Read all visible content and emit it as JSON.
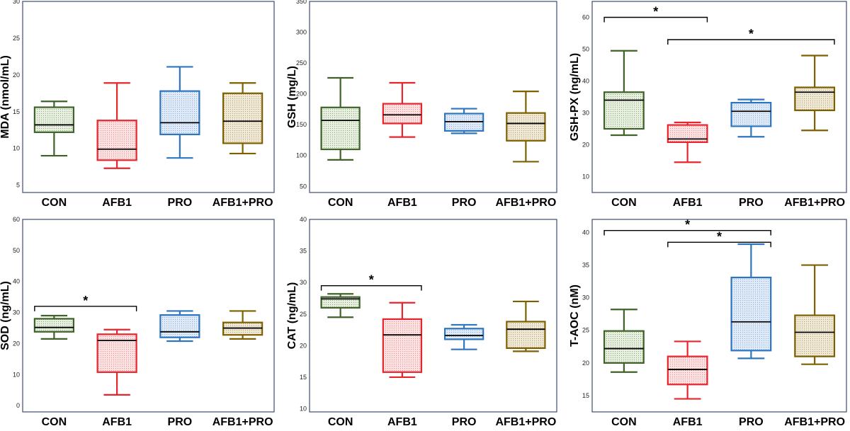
{
  "colors": {
    "CON": "#3f6228",
    "AFB1": "#e8242c",
    "PRO": "#2e75c0",
    "AFB1+PRO": "#7f6000",
    "frame": "#4a5a78",
    "median": "#000000"
  },
  "chart_data": [
    {
      "type": "box",
      "ylabel": "MDA (nmol/mL)",
      "ylim": [
        4,
        30
      ],
      "yticks": [
        5,
        10,
        15,
        20,
        25,
        30
      ],
      "categories": [
        "CON",
        "AFB1",
        "PRO",
        "AFB1+PRO"
      ],
      "boxes": [
        {
          "min": 9.0,
          "q1": 12.2,
          "median": 13.2,
          "q3": 15.6,
          "max": 16.4
        },
        {
          "min": 7.3,
          "q1": 8.4,
          "median": 9.9,
          "q3": 13.8,
          "max": 18.9
        },
        {
          "min": 8.7,
          "q1": 11.9,
          "median": 13.5,
          "q3": 17.8,
          "max": 21.1
        },
        {
          "min": 9.3,
          "q1": 10.7,
          "median": 13.7,
          "q3": 17.5,
          "max": 18.9
        }
      ],
      "significance": []
    },
    {
      "type": "box",
      "ylabel": "GSH (mg/L)",
      "ylim": [
        40,
        350
      ],
      "yticks": [
        50,
        100,
        150,
        200,
        250,
        300,
        350
      ],
      "categories": [
        "CON",
        "AFB1",
        "PRO",
        "AFB1+PRO"
      ],
      "boxes": [
        {
          "min": 93,
          "q1": 110,
          "median": 157,
          "q3": 178,
          "max": 226
        },
        {
          "min": 130,
          "q1": 152,
          "median": 166,
          "q3": 184,
          "max": 218
        },
        {
          "min": 136,
          "q1": 140,
          "median": 155,
          "q3": 168,
          "max": 176
        },
        {
          "min": 90,
          "q1": 124,
          "median": 152,
          "q3": 169,
          "max": 204
        }
      ],
      "significance": []
    },
    {
      "type": "box",
      "ylabel": "GSH-PX (ng/mL)",
      "ylim": [
        5,
        65
      ],
      "yticks": [
        10,
        20,
        30,
        40,
        50,
        60
      ],
      "categories": [
        "CON",
        "AFB1",
        "PRO",
        "AFB1+PRO"
      ],
      "boxes": [
        {
          "min": 23,
          "q1": 25,
          "median": 34,
          "q3": 36.5,
          "max": 49.5
        },
        {
          "min": 14.5,
          "q1": 20.8,
          "median": 21.8,
          "q3": 26.2,
          "max": 27
        },
        {
          "min": 22.5,
          "q1": 25.8,
          "median": 30.5,
          "q3": 33.2,
          "max": 34.2
        },
        {
          "min": 24.5,
          "q1": 30.8,
          "median": 36.5,
          "q3": 38,
          "max": 48
        }
      ],
      "significance": [
        {
          "from": 0,
          "to": 1,
          "level": 60,
          "label": "*"
        },
        {
          "from": 1,
          "to": 3,
          "level": 53,
          "label": "*"
        }
      ]
    },
    {
      "type": "box",
      "ylabel": "SOD (ng/mL)",
      "ylim": [
        -2,
        60
      ],
      "yticks": [
        0,
        10,
        20,
        30,
        40,
        50,
        60
      ],
      "categories": [
        "CON",
        "AFB1",
        "PRO",
        "AFB1+PRO"
      ],
      "boxes": [
        {
          "min": 21.5,
          "q1": 23.8,
          "median": 25.2,
          "q3": 28,
          "max": 29
        },
        {
          "min": 3.5,
          "q1": 10.8,
          "median": 21,
          "q3": 23,
          "max": 24.5
        },
        {
          "min": 20.8,
          "q1": 22,
          "median": 23.8,
          "q3": 29.2,
          "max": 30.5
        },
        {
          "min": 21.5,
          "q1": 22.8,
          "median": 25,
          "q3": 26.8,
          "max": 30.5
        }
      ],
      "significance": [
        {
          "from": 0,
          "to": 1,
          "level": 32,
          "label": "*"
        }
      ]
    },
    {
      "type": "box",
      "ylabel": "CAT (ng/mL)",
      "ylim": [
        9.5,
        40
      ],
      "yticks": [
        10,
        15,
        20,
        25,
        30,
        35,
        40
      ],
      "categories": [
        "CON",
        "AFB1",
        "PRO",
        "AFB1+PRO"
      ],
      "boxes": [
        {
          "min": 24.5,
          "q1": 26,
          "median": 27.4,
          "q3": 27.7,
          "max": 28.2
        },
        {
          "min": 15,
          "q1": 15.8,
          "median": 21.7,
          "q3": 24.2,
          "max": 26.8
        },
        {
          "min": 19.4,
          "q1": 21,
          "median": 21.6,
          "q3": 22.7,
          "max": 23.3
        },
        {
          "min": 19.1,
          "q1": 19.6,
          "median": 22.6,
          "q3": 23.8,
          "max": 27
        }
      ],
      "significance": [
        {
          "from": 0,
          "to": 1,
          "level": 29.5,
          "label": "*"
        }
      ]
    },
    {
      "type": "box",
      "ylabel": "T-AOC (nM)",
      "ylim": [
        12.5,
        42
      ],
      "yticks": [
        15,
        20,
        25,
        30,
        35,
        40
      ],
      "categories": [
        "CON",
        "AFB1",
        "PRO",
        "AFB1+PRO"
      ],
      "boxes": [
        {
          "min": 18.6,
          "q1": 20,
          "median": 22.2,
          "q3": 24.9,
          "max": 28.2
        },
        {
          "min": 14.5,
          "q1": 16.7,
          "median": 19,
          "q3": 21,
          "max": 23.3
        },
        {
          "min": 20.7,
          "q1": 21.9,
          "median": 26.3,
          "q3": 33.1,
          "max": 38.2
        },
        {
          "min": 19.8,
          "q1": 21,
          "median": 24.7,
          "q3": 27.3,
          "max": 35
        }
      ],
      "significance": [
        {
          "from": 0,
          "to": 2,
          "level": 40.3,
          "label": "*"
        },
        {
          "from": 1,
          "to": 2,
          "level": 38.5,
          "label": "*"
        }
      ]
    }
  ]
}
